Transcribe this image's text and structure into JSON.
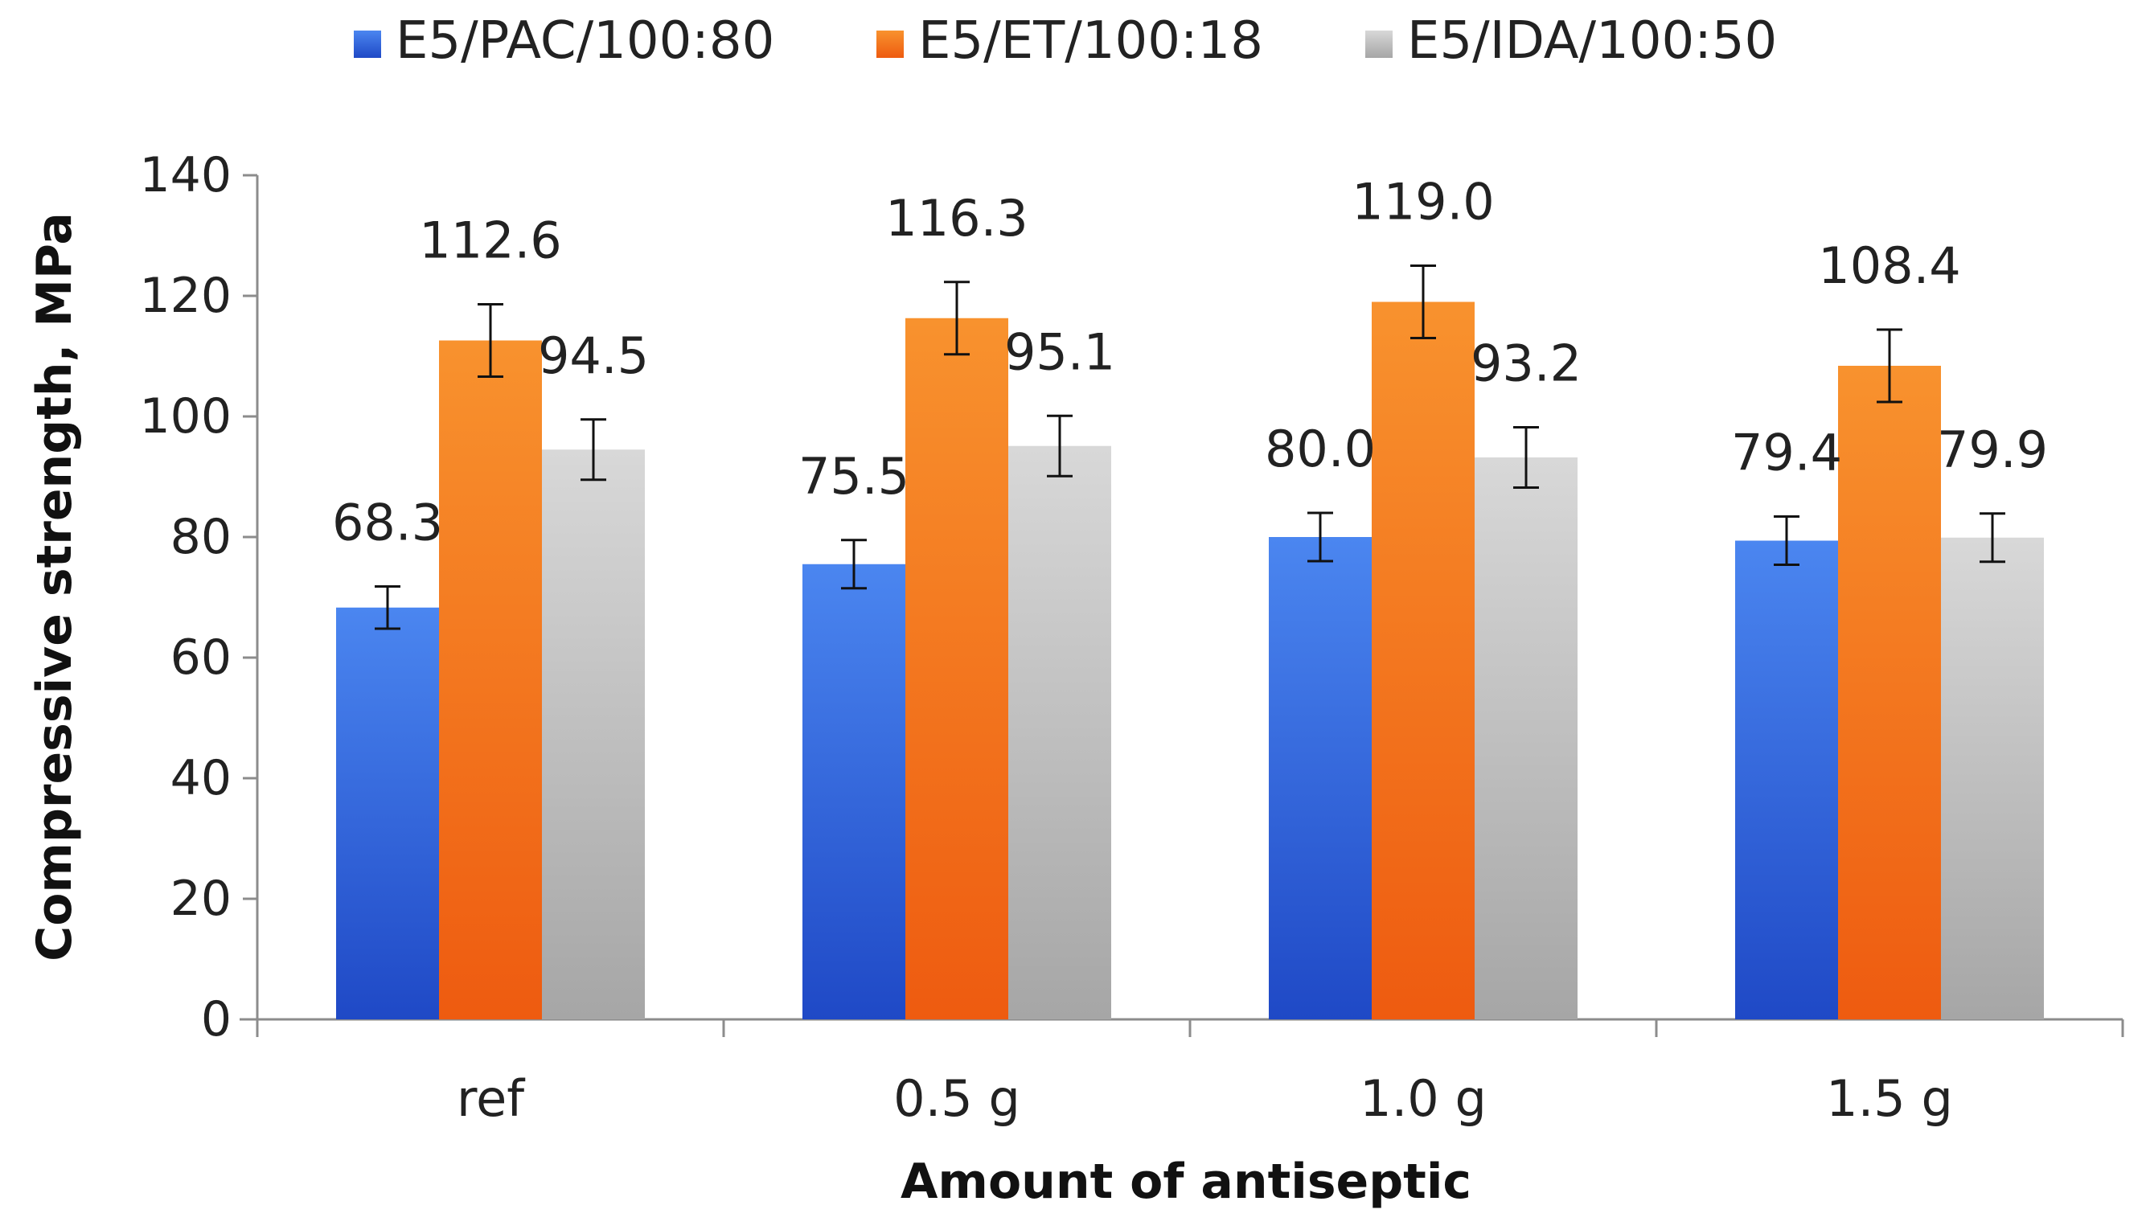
{
  "chart_data": {
    "type": "bar",
    "title": "",
    "xlabel": "Amount of antiseptic",
    "ylabel": "Compressive strength, MPa",
    "ylim": [
      0,
      140
    ],
    "yticks": [
      0,
      20,
      40,
      60,
      80,
      100,
      120,
      140
    ],
    "ytick_labels": [
      "0",
      "20",
      "40",
      "60",
      "80",
      "100",
      "120",
      "140"
    ],
    "grid": false,
    "legend_position": "top",
    "error_bars": true,
    "categories": [
      "ref",
      "0.5 g",
      "1.0 g",
      "1.5 g"
    ],
    "series": [
      {
        "name": "E5/PAC/100:80",
        "color": "#2f5fd0",
        "values": [
          68.3,
          75.5,
          80.0,
          79.4
        ],
        "labels": [
          "68.3",
          "75.5",
          "80.0",
          "79.4"
        ],
        "error": [
          3.5,
          4.0,
          4.0,
          4.0
        ]
      },
      {
        "name": "E5/ET/100:18",
        "color": "#f26b1d",
        "values": [
          112.6,
          116.3,
          119.0,
          108.4
        ],
        "labels": [
          "112.6",
          "116.3",
          "119.0",
          "108.4"
        ],
        "error": [
          6.0,
          6.0,
          6.0,
          6.0
        ]
      },
      {
        "name": "E5/IDA/100:50",
        "color": "#b9b9b9",
        "values": [
          94.5,
          95.1,
          93.2,
          79.9
        ],
        "labels": [
          "94.5",
          "95.1",
          "93.2",
          "79.9"
        ],
        "error": [
          5.0,
          5.0,
          5.0,
          4.0
        ]
      }
    ]
  }
}
